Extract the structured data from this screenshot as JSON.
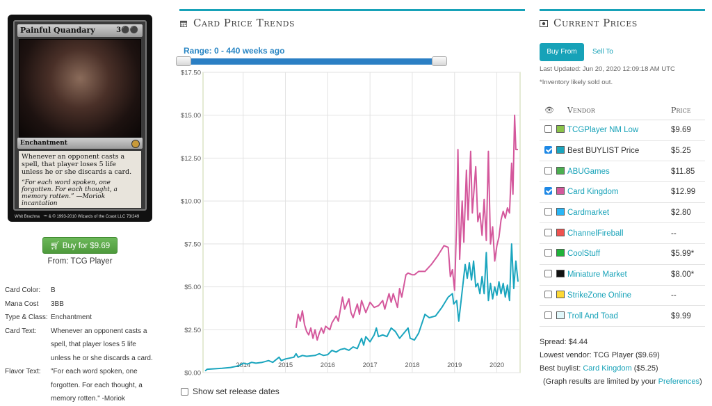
{
  "card": {
    "name": "Painful Quandary",
    "mana": "3⚫⚫",
    "type_line": "Enchantment",
    "rules_text": "Whenever an opponent casts a spell, that player loses 5 life unless he or she discards a card.",
    "flavor_text": "“For each word spoken, one forgotten. For each thought, a memory rotten.” —Moriok incantation",
    "artist": "Whit Brachna",
    "copyright": "™ & © 1993-2010 Wizards of the Coast LLC 73/249"
  },
  "buy": {
    "label": "Buy for $9.69",
    "from": "From: TCG Player"
  },
  "props": [
    {
      "label": "Card Color:",
      "value": "B"
    },
    {
      "label": "Mana Cost",
      "value": "3BB"
    },
    {
      "label": "Type & Class:",
      "value": "Enchantment"
    },
    {
      "label": "Card Text:",
      "value": "Whenever an opponent casts a spell, that player loses 5 life unless he or she discards a card."
    },
    {
      "label": "Flavor Text:",
      "value": "\"For each word spoken, one forgotten. For each thought, a memory rotten.\" -Moriok"
    }
  ],
  "trends": {
    "title": "Card Price Trends",
    "range": "Range: 0 - 440 weeks ago",
    "show_release": "Show set release dates"
  },
  "chart_data": {
    "type": "line",
    "ylim": [
      0,
      17.5
    ],
    "xlim": [
      2013.05,
      2020.55
    ],
    "yticks": [
      "$0.00",
      "$2.50",
      "$5.00",
      "$7.50",
      "$10.00",
      "$12.50",
      "$15.00",
      "$17.50"
    ],
    "ytick_values": [
      0,
      2.5,
      5,
      7.5,
      10,
      12.5,
      15,
      17.5
    ],
    "xticks": [
      "2014",
      "2015",
      "2016",
      "2017",
      "2018",
      "2019",
      "2020"
    ],
    "xtick_values": [
      2014,
      2015,
      2016,
      2017,
      2018,
      2019,
      2020
    ],
    "grid": true,
    "series": [
      {
        "color": "#1aa5be",
        "points": [
          [
            2013.1,
            0.1
          ],
          [
            2013.15,
            0.2
          ],
          [
            2013.5,
            0.25
          ],
          [
            2013.7,
            0.3
          ],
          [
            2013.9,
            0.4
          ],
          [
            2014.0,
            0.55
          ],
          [
            2014.1,
            0.5
          ],
          [
            2014.2,
            0.6
          ],
          [
            2014.3,
            0.55
          ],
          [
            2014.45,
            0.6
          ],
          [
            2014.6,
            0.7
          ],
          [
            2014.7,
            0.6
          ],
          [
            2014.85,
            0.9
          ],
          [
            2014.9,
            0.7
          ],
          [
            2015.0,
            0.8
          ],
          [
            2015.2,
            0.9
          ],
          [
            2015.25,
            1.1
          ],
          [
            2015.3,
            0.9
          ],
          [
            2015.4,
            1.0
          ],
          [
            2015.5,
            0.95
          ],
          [
            2015.7,
            1.0
          ],
          [
            2015.8,
            1.1
          ],
          [
            2015.9,
            1.0
          ],
          [
            2016.0,
            1.05
          ],
          [
            2016.1,
            1.3
          ],
          [
            2016.2,
            1.2
          ],
          [
            2016.3,
            1.35
          ],
          [
            2016.4,
            1.4
          ],
          [
            2016.5,
            1.3
          ],
          [
            2016.6,
            1.5
          ],
          [
            2016.7,
            1.4
          ],
          [
            2016.8,
            2.0
          ],
          [
            2016.85,
            1.6
          ],
          [
            2016.9,
            2.1
          ],
          [
            2017.0,
            1.8
          ],
          [
            2017.1,
            2.2
          ],
          [
            2017.15,
            2.6
          ],
          [
            2017.2,
            2.1
          ],
          [
            2017.3,
            2.2
          ],
          [
            2017.4,
            2.1
          ],
          [
            2017.5,
            2.6
          ],
          [
            2017.6,
            2.4
          ],
          [
            2017.7,
            2.0
          ],
          [
            2017.8,
            2.3
          ],
          [
            2017.9,
            2.6
          ],
          [
            2017.95,
            2.0
          ],
          [
            2018.05,
            1.9
          ],
          [
            2018.15,
            2.3
          ],
          [
            2018.3,
            3.4
          ],
          [
            2018.4,
            3.2
          ],
          [
            2018.55,
            3.3
          ],
          [
            2018.7,
            3.8
          ],
          [
            2018.85,
            4.4
          ],
          [
            2018.95,
            4.6
          ],
          [
            2018.98,
            4.0
          ],
          [
            2019.05,
            4.2
          ],
          [
            2019.1,
            3.0
          ],
          [
            2019.15,
            4.1
          ],
          [
            2019.25,
            6.3
          ],
          [
            2019.3,
            5.5
          ],
          [
            2019.35,
            6.4
          ],
          [
            2019.4,
            5.4
          ],
          [
            2019.45,
            6.5
          ],
          [
            2019.5,
            5.0
          ],
          [
            2019.55,
            5.2
          ],
          [
            2019.6,
            4.6
          ],
          [
            2019.65,
            5.6
          ],
          [
            2019.7,
            4.6
          ],
          [
            2019.75,
            7.0
          ],
          [
            2019.8,
            4.2
          ],
          [
            2019.85,
            5.2
          ],
          [
            2019.9,
            4.3
          ],
          [
            2019.95,
            5.0
          ],
          [
            2020.0,
            4.5
          ],
          [
            2020.05,
            5.3
          ],
          [
            2020.1,
            4.6
          ],
          [
            2020.15,
            5.2
          ],
          [
            2020.2,
            4.4
          ],
          [
            2020.25,
            5.1
          ],
          [
            2020.3,
            4.2
          ],
          [
            2020.35,
            7.5
          ],
          [
            2020.4,
            4.9
          ],
          [
            2020.45,
            6.5
          ],
          [
            2020.5,
            5.3
          ]
        ]
      },
      {
        "color": "#d4589c",
        "points": [
          [
            2015.25,
            2.6
          ],
          [
            2015.3,
            3.4
          ],
          [
            2015.35,
            3.0
          ],
          [
            2015.4,
            3.6
          ],
          [
            2015.45,
            2.8
          ],
          [
            2015.5,
            2.4
          ],
          [
            2015.55,
            2.2
          ],
          [
            2015.6,
            2.6
          ],
          [
            2015.65,
            2.0
          ],
          [
            2015.7,
            2.5
          ],
          [
            2015.75,
            1.9
          ],
          [
            2015.8,
            2.3
          ],
          [
            2015.85,
            2.6
          ],
          [
            2015.9,
            2.3
          ],
          [
            2015.95,
            2.7
          ],
          [
            2016.05,
            2.5
          ],
          [
            2016.1,
            2.9
          ],
          [
            2016.2,
            3.3
          ],
          [
            2016.25,
            3.0
          ],
          [
            2016.35,
            4.4
          ],
          [
            2016.4,
            3.7
          ],
          [
            2016.5,
            4.3
          ],
          [
            2016.55,
            3.5
          ],
          [
            2016.6,
            3.2
          ],
          [
            2016.7,
            4.0
          ],
          [
            2016.75,
            3.4
          ],
          [
            2016.8,
            4.2
          ],
          [
            2016.9,
            3.5
          ],
          [
            2017.0,
            4.1
          ],
          [
            2017.1,
            3.8
          ],
          [
            2017.2,
            3.9
          ],
          [
            2017.3,
            4.2
          ],
          [
            2017.35,
            3.7
          ],
          [
            2017.45,
            4.6
          ],
          [
            2017.5,
            4.1
          ],
          [
            2017.55,
            4.6
          ],
          [
            2017.65,
            3.8
          ],
          [
            2017.7,
            4.9
          ],
          [
            2017.75,
            4.4
          ],
          [
            2017.85,
            5.7
          ],
          [
            2017.9,
            5.8
          ],
          [
            2018.0,
            5.7
          ],
          [
            2018.05,
            5.7
          ],
          [
            2018.15,
            5.9
          ],
          [
            2018.3,
            5.9
          ],
          [
            2018.45,
            6.3
          ],
          [
            2018.6,
            6.8
          ],
          [
            2018.75,
            7.4
          ],
          [
            2018.85,
            7.3
          ],
          [
            2018.9,
            5.6
          ],
          [
            2018.95,
            6.0
          ],
          [
            2019.0,
            4.8
          ],
          [
            2019.05,
            8.8
          ],
          [
            2019.08,
            13.0
          ],
          [
            2019.12,
            6.6
          ],
          [
            2019.18,
            10.0
          ],
          [
            2019.22,
            7.6
          ],
          [
            2019.28,
            11.8
          ],
          [
            2019.32,
            8.9
          ],
          [
            2019.38,
            12.9
          ],
          [
            2019.42,
            9.3
          ],
          [
            2019.5,
            12.0
          ],
          [
            2019.55,
            8.8
          ],
          [
            2019.6,
            9.3
          ],
          [
            2019.65,
            8.0
          ],
          [
            2019.7,
            10.1
          ],
          [
            2019.75,
            7.7
          ],
          [
            2019.8,
            12.9
          ],
          [
            2019.85,
            7.5
          ],
          [
            2019.9,
            8.5
          ],
          [
            2019.95,
            6.5
          ],
          [
            2020.0,
            7.4
          ],
          [
            2020.05,
            7.9
          ],
          [
            2020.1,
            8.9
          ],
          [
            2020.15,
            9.4
          ],
          [
            2020.2,
            9.0
          ],
          [
            2020.25,
            9.6
          ],
          [
            2020.3,
            9.3
          ],
          [
            2020.35,
            12.2
          ],
          [
            2020.38,
            10.4
          ],
          [
            2020.42,
            15.0
          ],
          [
            2020.45,
            13.0
          ],
          [
            2020.5,
            13.0
          ]
        ]
      }
    ]
  },
  "prices": {
    "title": "Current Prices",
    "tab_buy": "Buy From",
    "tab_sell": "Sell To",
    "last_updated": "Last Updated: Jun 20, 2020 12:09:18 AM UTC",
    "note": "*Inventory likely sold out.",
    "col_vendor": "Vendor",
    "col_price": "Price",
    "vendors": [
      {
        "name": "TCGPlayer NM Low",
        "price": "$9.69",
        "color": "#8bc34a",
        "checked": false,
        "link": true
      },
      {
        "name": "Best BUYLIST Price",
        "price": "$5.25",
        "color": "#1aa5be",
        "checked": true,
        "link": false
      },
      {
        "name": "ABUGames",
        "price": "$11.85",
        "color": "#4caf50",
        "checked": false,
        "link": true
      },
      {
        "name": "Card Kingdom",
        "price": "$12.99",
        "color": "#d4589c",
        "checked": true,
        "link": true
      },
      {
        "name": "Cardmarket",
        "price": "$2.80",
        "color": "#29b6f6",
        "checked": false,
        "link": true
      },
      {
        "name": "ChannelFireball",
        "price": "--",
        "color": "#ef5350",
        "checked": false,
        "link": true
      },
      {
        "name": "CoolStuff",
        "price": "$5.99*",
        "color": "#1fb33a",
        "checked": false,
        "link": true
      },
      {
        "name": "Miniature Market",
        "price": "$8.00*",
        "color": "#111111",
        "checked": false,
        "link": true
      },
      {
        "name": "StrikeZone Online",
        "price": "--",
        "color": "#fdd835",
        "checked": false,
        "link": true
      },
      {
        "name": "Troll And Toad",
        "price": "$9.99",
        "color": "#e0f7fa",
        "checked": false,
        "link": true
      }
    ],
    "spread": "Spread: $4.44",
    "lowest_vendor": "Lowest vendor: TCG Player ($9.69)",
    "best_buylist_prefix": "Best buylist: ",
    "best_buylist_link": "Card Kingdom",
    "best_buylist_suffix": " ($5.25)",
    "graph_note_prefix": "(Graph results are limited by your ",
    "graph_note_link": "Preferences",
    "graph_note_suffix": ")"
  }
}
